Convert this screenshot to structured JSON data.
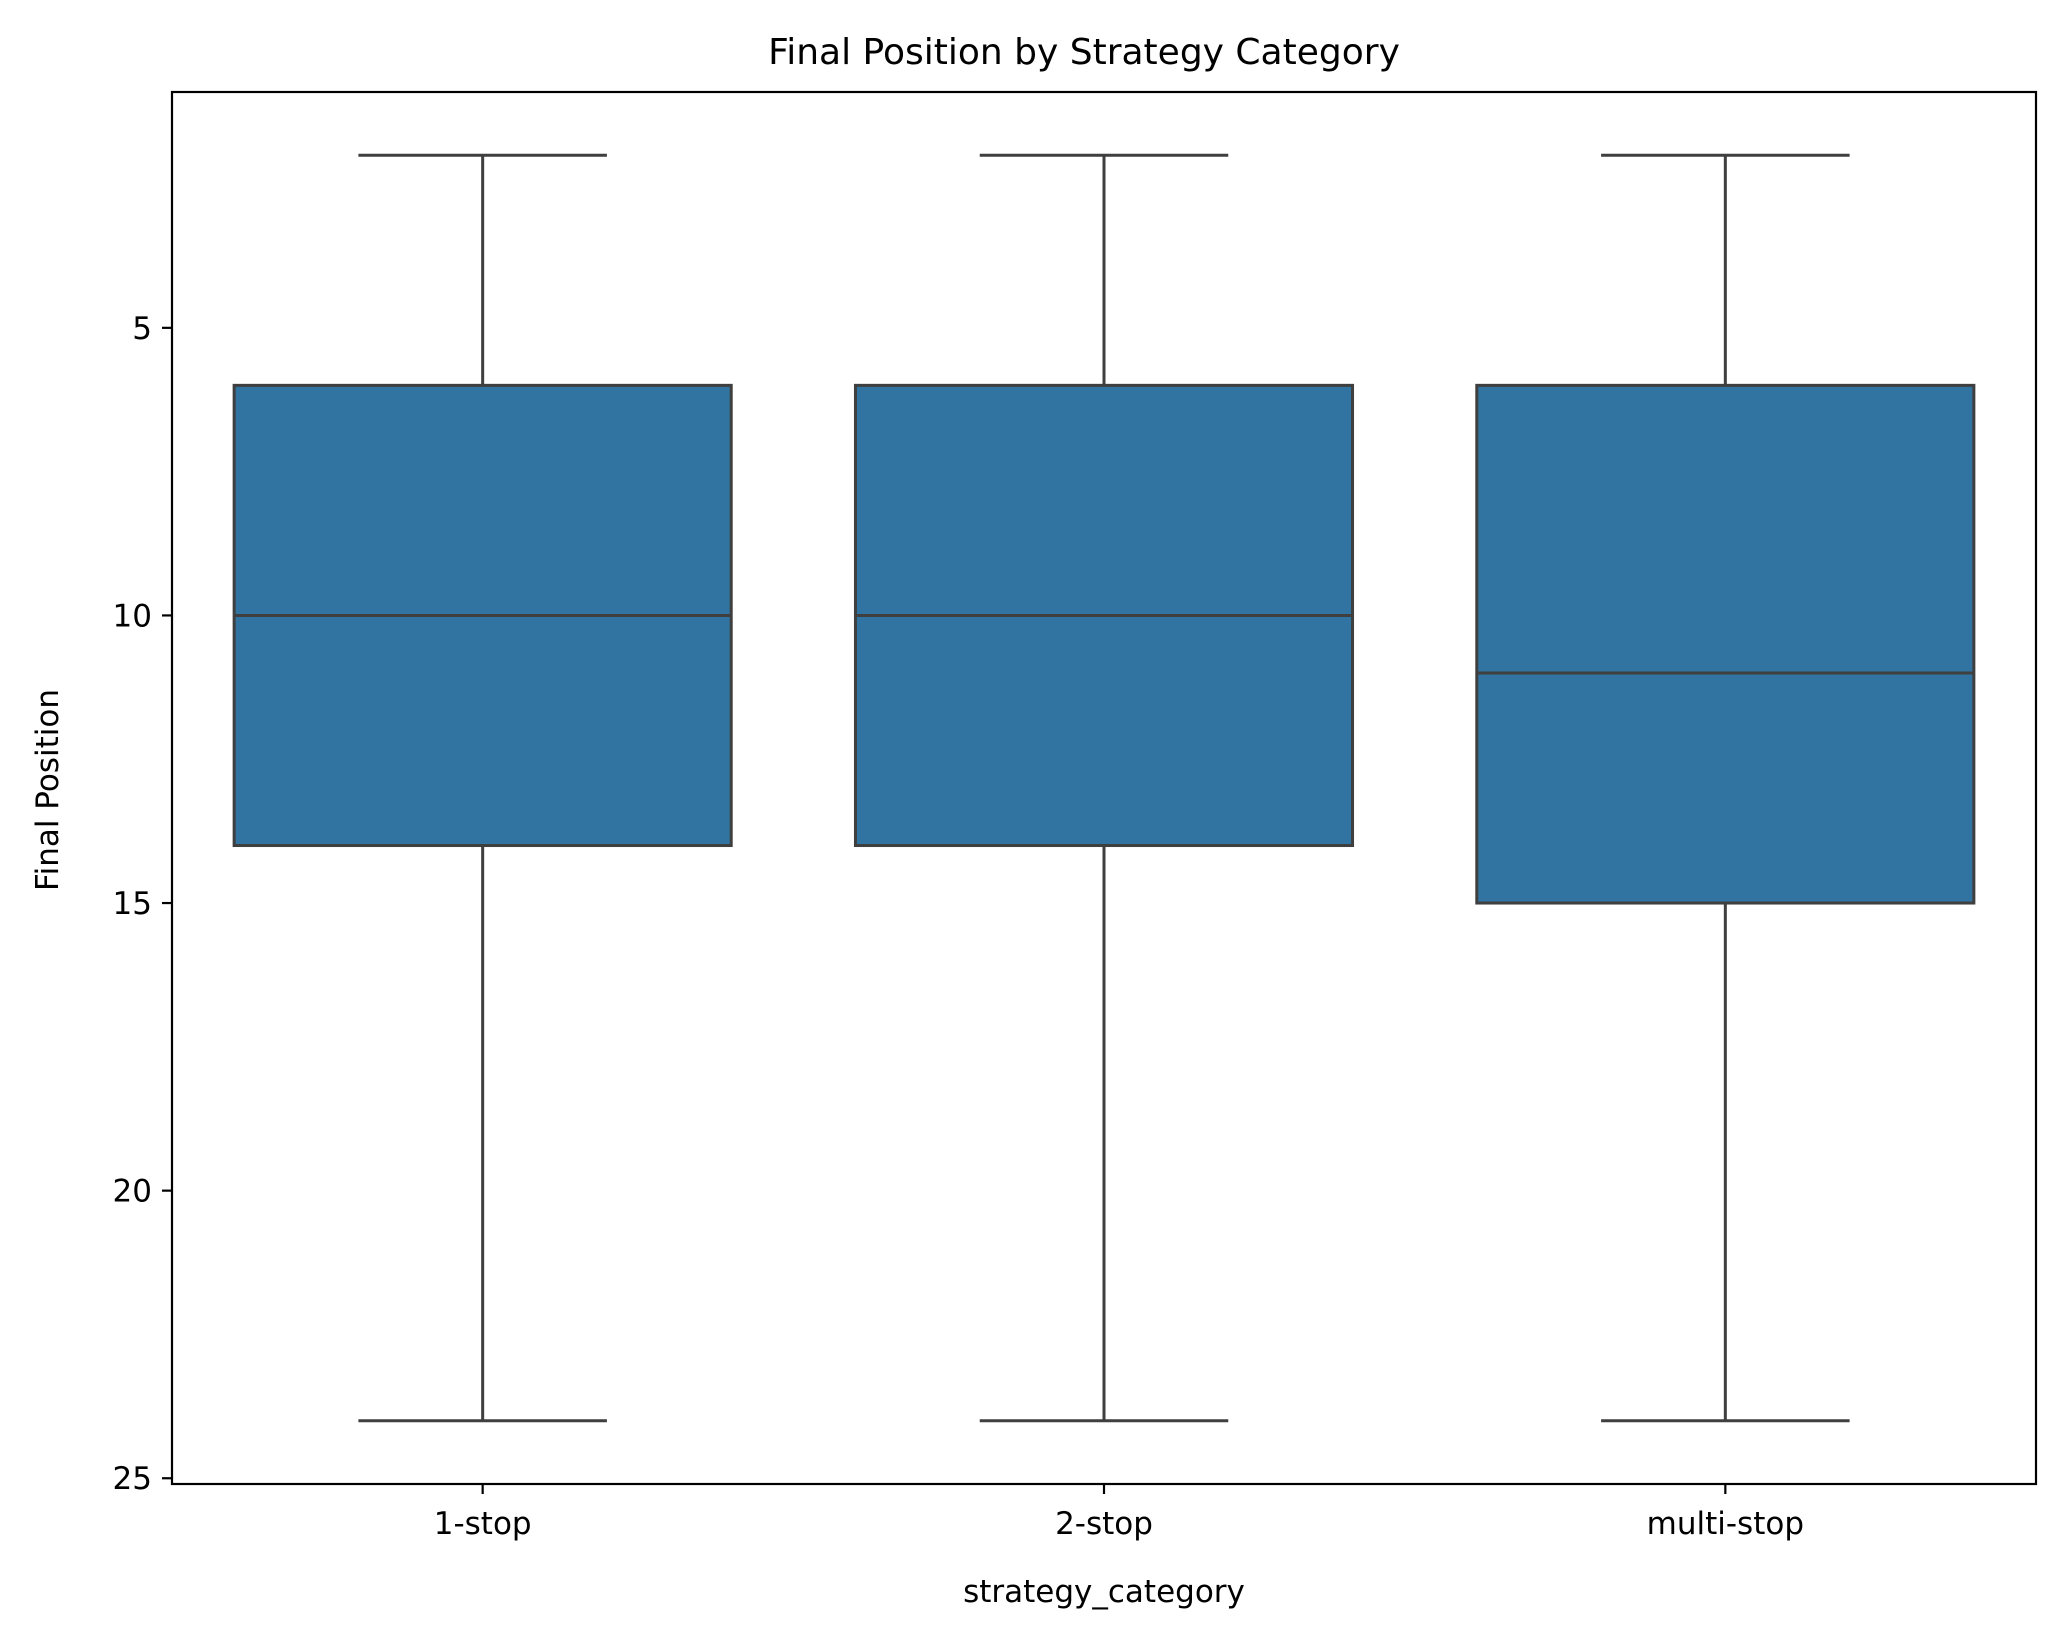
{
  "chart_data": {
    "type": "boxplot",
    "title": "Final Position by Strategy Category",
    "xlabel": "strategy_category",
    "ylabel": "Final Position",
    "categories": [
      "1-stop",
      "2-stop",
      "multi-stop"
    ],
    "boxes": [
      {
        "category": "1-stop",
        "whisker_low": 2,
        "q1": 6,
        "median": 10,
        "q3": 14,
        "whisker_high": 24
      },
      {
        "category": "2-stop",
        "whisker_low": 2,
        "q1": 6,
        "median": 10,
        "q3": 14,
        "whisker_high": 24
      },
      {
        "category": "multi-stop",
        "whisker_low": 2,
        "q1": 6,
        "median": 11,
        "q3": 15,
        "whisker_high": 24
      }
    ],
    "yticks": [
      5,
      10,
      15,
      20,
      25
    ],
    "ylim": [
      0.9,
      25.1
    ],
    "y_inverted": true,
    "grid": false,
    "box_color": "#3274a1",
    "line_color": "#3f3f3f"
  }
}
